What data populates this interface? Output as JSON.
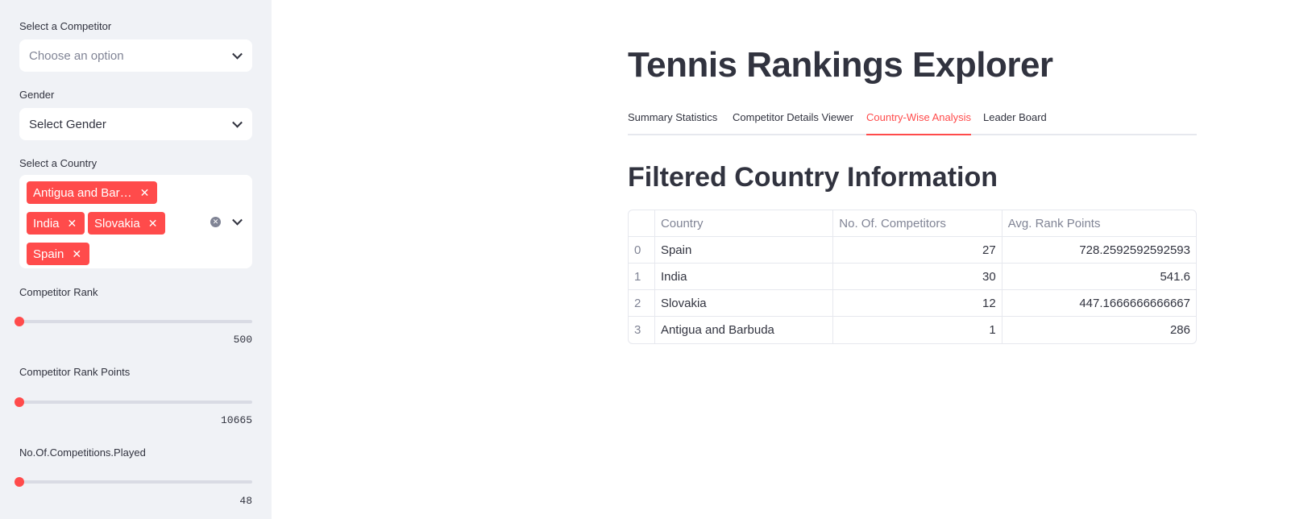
{
  "sidebar": {
    "competitor": {
      "label": "Select a Competitor",
      "placeholder": "Choose an option"
    },
    "gender": {
      "label": "Gender",
      "value": "Select Gender"
    },
    "country": {
      "label": "Select a Country",
      "tags": [
        "Antigua and Bar…",
        "India",
        "Slovakia",
        "Spain"
      ]
    },
    "rank": {
      "label": "Competitor Rank",
      "max": "500"
    },
    "rank_points": {
      "label": "Competitor Rank Points",
      "max": "10665"
    },
    "competitions": {
      "label": "No.Of.Competitions.Played",
      "max": "48"
    }
  },
  "main": {
    "title": "Tennis Rankings Explorer",
    "tabs": [
      {
        "label": "Summary Statistics"
      },
      {
        "label": "Competitor Details Viewer"
      },
      {
        "label": "Country-Wise Analysis"
      },
      {
        "label": "Leader Board"
      }
    ],
    "subtitle": "Filtered Country Information",
    "table": {
      "headers": [
        "",
        "Country",
        "No. Of. Competitors",
        "Avg. Rank Points"
      ],
      "rows": [
        [
          "0",
          "Spain",
          "27",
          "728.2592592592593"
        ],
        [
          "1",
          "India",
          "30",
          "541.6"
        ],
        [
          "2",
          "Slovakia",
          "12",
          "447.1666666666667"
        ],
        [
          "3",
          "Antigua and Barbuda",
          "1",
          "286"
        ]
      ]
    }
  },
  "colors": {
    "accent": "#ff4b4b",
    "sidebar_bg": "#f0f2f6",
    "text": "#31333f",
    "muted": "#808495"
  },
  "icons": {
    "dropdown": "chevron-down-icon",
    "tag_remove": "close-icon",
    "clear": "clear-circle-icon"
  }
}
